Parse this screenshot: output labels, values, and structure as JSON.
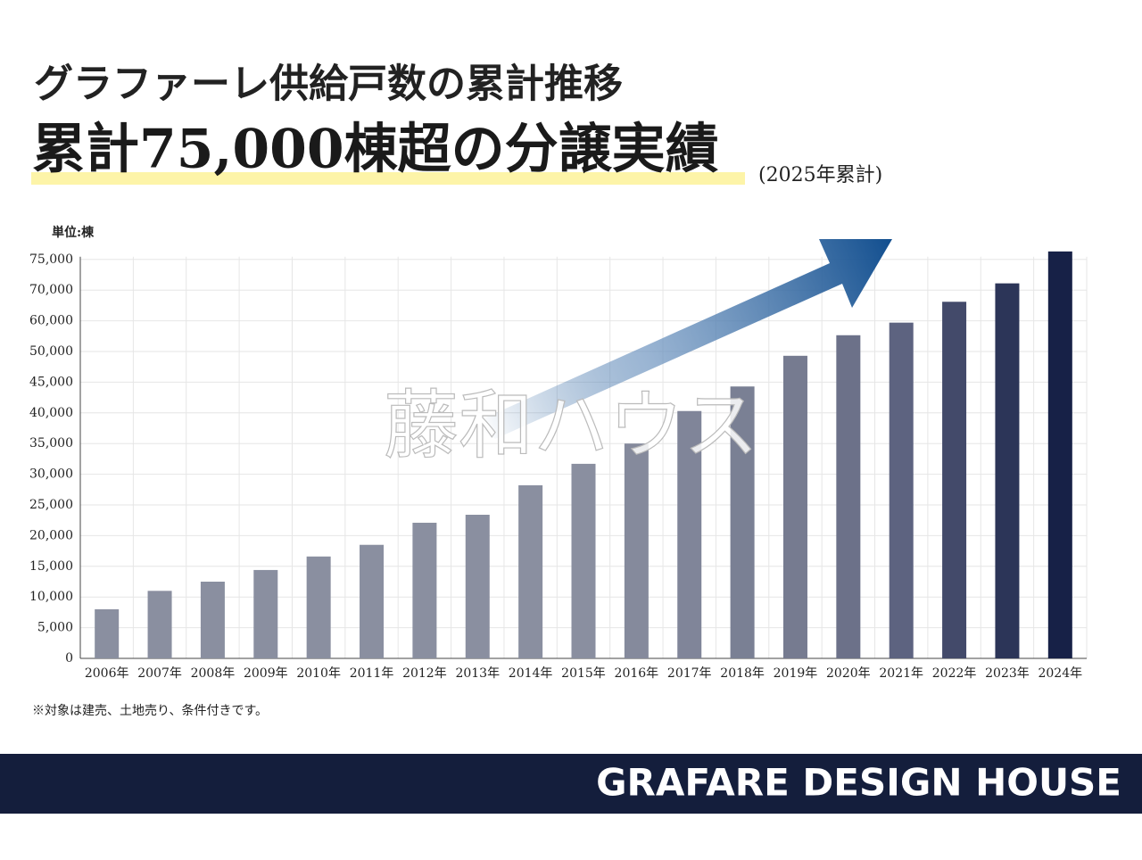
{
  "chart_data": {
    "type": "bar",
    "title": "グラファーレ供給戸数の累計推移",
    "subtitle": "累計75,000棟超の分譲実績",
    "subtitle_note": "(2025年累計)",
    "unit_label": "単位:棟",
    "note": "※対象は建売、土地売り、条件付きです。",
    "watermark": "藤和ハウス",
    "footer": "GRAFARE DESIGN HOUSE",
    "categories": [
      "2006年",
      "2007年",
      "2008年",
      "2009年",
      "2010年",
      "2011年",
      "2012年",
      "2013年",
      "2014年",
      "2015年",
      "2016年",
      "2017年",
      "2018年",
      "2019年",
      "2020年",
      "2021年",
      "2022年",
      "2023年",
      "2024年"
    ],
    "values": [
      8000,
      11000,
      12500,
      14400,
      16600,
      18500,
      22100,
      23400,
      28200,
      31700,
      35000,
      40300,
      44300,
      49300,
      55300,
      59400,
      66200,
      71100,
      76300
    ],
    "colors": [
      "#8a8fa0",
      "#8a8fa0",
      "#8a8fa0",
      "#8a8fa0",
      "#8a8fa0",
      "#8a8fa0",
      "#8a8fa0",
      "#8a8fa0",
      "#8a8fa0",
      "#8a8fa0",
      "#858a9c",
      "#808599",
      "#7a8094",
      "#767b90",
      "#6c7189",
      "#5d6380",
      "#434a6a",
      "#2c3558",
      "#172147"
    ],
    "ylim": [
      0,
      75000
    ],
    "yticks": [
      0,
      {
        "value": 5000,
        "label": "5,000"
      },
      {
        "value": 10000,
        "label": "10,000"
      },
      {
        "value": 15000,
        "label": "15,000"
      },
      {
        "value": 20000,
        "label": "20,000"
      },
      {
        "value": 25000,
        "label": "25,000"
      },
      {
        "value": 30000,
        "label": "30,000"
      },
      {
        "value": 35000,
        "label": "35,000"
      },
      {
        "value": 40000,
        "label": "40,000"
      },
      {
        "value": 45000,
        "label": "45,000"
      },
      {
        "value": 50000,
        "label": "50,000"
      },
      {
        "value": 60000,
        "label": "60,000"
      },
      {
        "value": 70000,
        "label": "70,000"
      },
      {
        "value": 75000,
        "label": "75,000"
      }
    ],
    "grid": true
  }
}
